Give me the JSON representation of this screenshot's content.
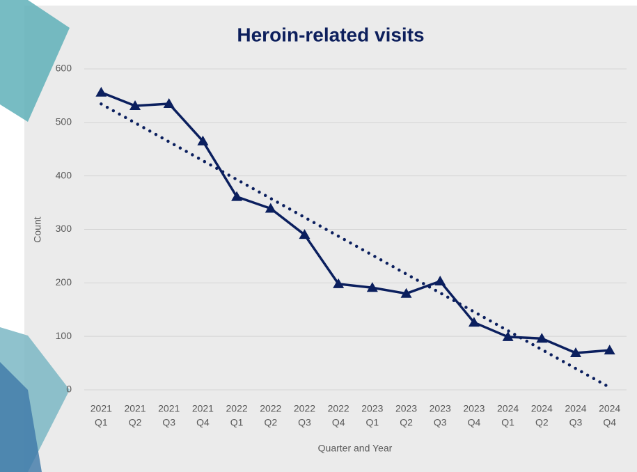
{
  "chart_data": {
    "type": "line",
    "title": "Heroin-related visits",
    "x_label": "Quarter and Year",
    "y_label": "Count",
    "categories": [
      [
        "2021",
        "Q1"
      ],
      [
        "2021",
        "Q2"
      ],
      [
        "2021",
        "Q3"
      ],
      [
        "2021",
        "Q4"
      ],
      [
        "2022",
        "Q1"
      ],
      [
        "2022",
        "Q2"
      ],
      [
        "2022",
        "Q3"
      ],
      [
        "2022",
        "Q4"
      ],
      [
        "2023",
        "Q1"
      ],
      [
        "2023",
        "Q2"
      ],
      [
        "2023",
        "Q3"
      ],
      [
        "2023",
        "Q4"
      ],
      [
        "2024",
        "Q1"
      ],
      [
        "2024",
        "Q2"
      ],
      [
        "2024",
        "Q3"
      ],
      [
        "2024",
        "Q4"
      ]
    ],
    "series": [
      {
        "name": "Heroin-related visits",
        "color": "#0b1f5e",
        "values": [
          556,
          531,
          535,
          465,
          361,
          339,
          290,
          198,
          191,
          180,
          203,
          126,
          99,
          96,
          69,
          74
        ]
      }
    ],
    "trendline": "linear",
    "ylim": [
      0,
      600
    ],
    "yticks": [
      0,
      100,
      200,
      300,
      400,
      500,
      600
    ],
    "grid": true
  }
}
